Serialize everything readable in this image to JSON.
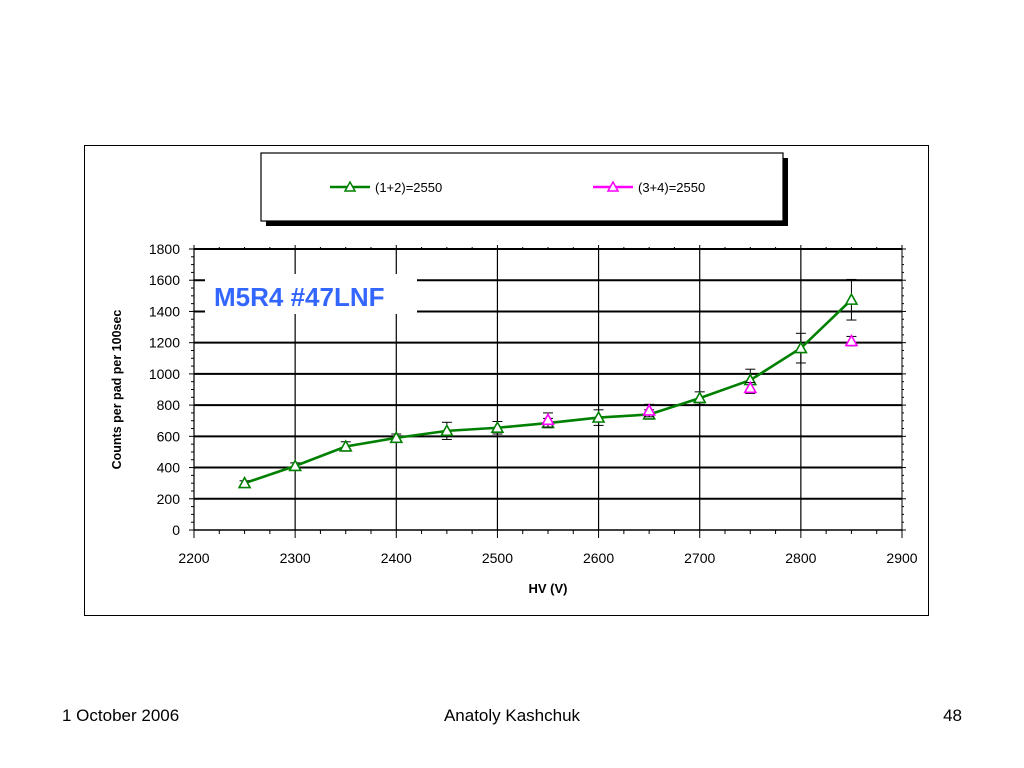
{
  "footer": {
    "date": "1 October 2006",
    "author": "Anatoly Kashchuk",
    "page": "48"
  },
  "chart_data": {
    "type": "line",
    "annotation": "M5R4 #47LNF",
    "xlabel": "HV (V)",
    "ylabel": "Counts  per pad per 100sec",
    "xlim": [
      2200,
      2900
    ],
    "ylim": [
      0,
      1800
    ],
    "xticks": [
      2200,
      2300,
      2400,
      2500,
      2600,
      2700,
      2800,
      2900
    ],
    "yticks": [
      0,
      200,
      400,
      600,
      800,
      1000,
      1200,
      1400,
      1600,
      1800
    ],
    "grid": {
      "horizontal": true,
      "vertical": true
    },
    "legend_position": "top",
    "series": [
      {
        "name": "(1+2)=2550",
        "color": "#008000",
        "marker": "triangle",
        "line": true,
        "x": [
          2250,
          2300,
          2350,
          2400,
          2450,
          2500,
          2550,
          2600,
          2650,
          2700,
          2750,
          2800,
          2850
        ],
        "y": [
          300,
          410,
          535,
          590,
          635,
          655,
          685,
          720,
          740,
          845,
          960,
          1165,
          1475
        ],
        "error": [
          15,
          20,
          30,
          25,
          55,
          40,
          30,
          50,
          30,
          40,
          70,
          95,
          130
        ]
      },
      {
        "name": "(3+4)=2550",
        "color": "#ff00ff",
        "marker": "triangle",
        "line": false,
        "x": [
          2550,
          2650,
          2750,
          2850
        ],
        "y": [
          705,
          765,
          910,
          1210
        ],
        "error": [
          45,
          40,
          35,
          30
        ]
      }
    ]
  }
}
